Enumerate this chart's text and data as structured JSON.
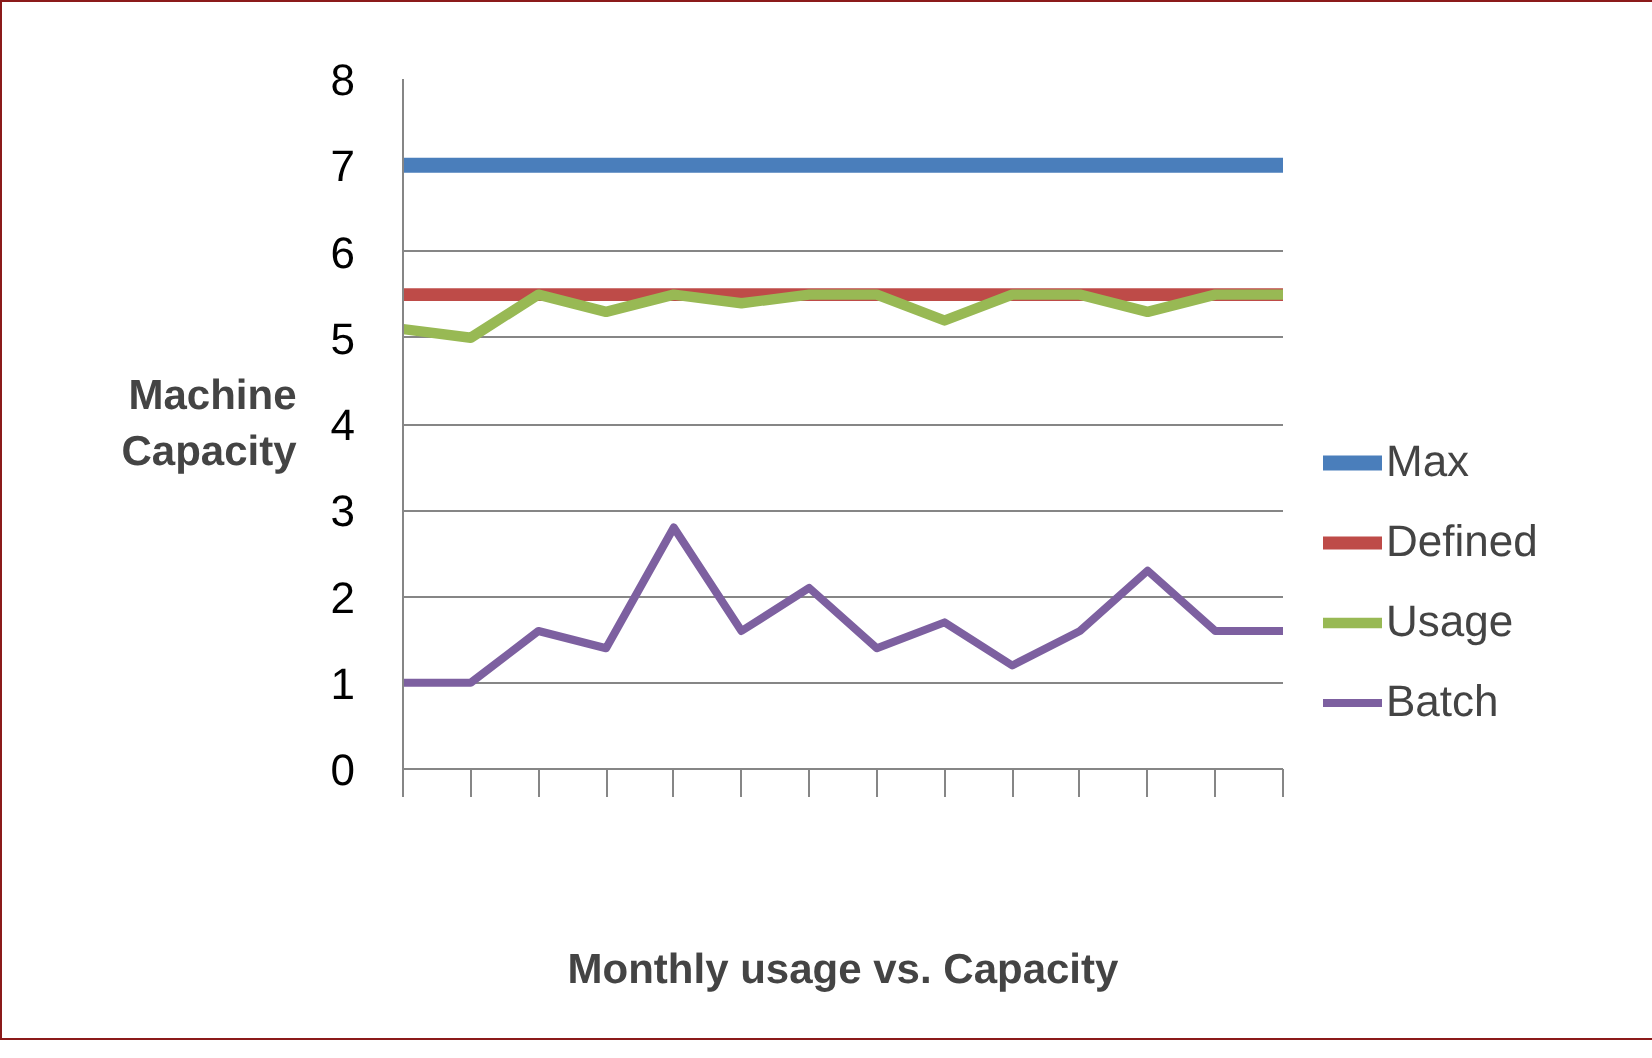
{
  "chart_data": {
    "type": "line",
    "xlabel": "Monthly usage vs. Capacity",
    "ylabel": "Machine Capacity",
    "categories": [
      null,
      null,
      null,
      null,
      null,
      null,
      null,
      null,
      null,
      null,
      null,
      null,
      null,
      null
    ],
    "series": [
      {
        "name": "Max",
        "color": "#4a7ebb",
        "values": [
          7,
          7,
          7,
          7,
          7,
          7,
          7,
          7,
          7,
          7,
          7,
          7,
          7,
          7
        ]
      },
      {
        "name": "Defined",
        "color": "#be4b48",
        "values": [
          5.5,
          5.5,
          5.5,
          5.5,
          5.5,
          5.5,
          5.5,
          5.5,
          5.5,
          5.5,
          5.5,
          5.5,
          5.5,
          5.5
        ]
      },
      {
        "name": "Usage",
        "color": "#98b954",
        "values": [
          5.1,
          5.0,
          5.5,
          5.3,
          5.5,
          5.4,
          5.5,
          5.5,
          5.2,
          5.5,
          5.5,
          5.3,
          5.5,
          5.5
        ]
      },
      {
        "name": "Batch",
        "color": "#7d60a0",
        "values": [
          1.0,
          1.0,
          1.6,
          1.4,
          2.8,
          1.6,
          2.1,
          1.4,
          1.7,
          1.2,
          1.6,
          2.3,
          1.6,
          1.6
        ]
      }
    ],
    "ylim": [
      0,
      8
    ],
    "yticks": [
      0,
      1,
      2,
      3,
      4,
      5,
      6,
      7,
      8
    ],
    "grid": "y",
    "legend": "right",
    "tick_labels": "y",
    "marker": "none",
    "line_style": "solid"
  }
}
